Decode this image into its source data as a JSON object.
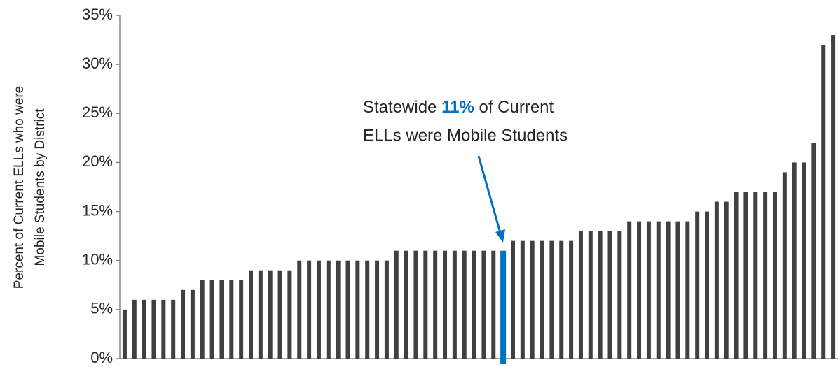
{
  "chart_data": {
    "type": "bar",
    "ylabel": [
      "Percent of Current ELLs who were",
      "Mobile Students by District"
    ],
    "annotation": [
      [
        "Statewide ",
        "11%",
        " of Current"
      ],
      [
        "ELLs were Mobile Students"
      ]
    ],
    "categories": [
      null,
      null,
      null,
      null,
      null,
      null,
      null,
      null,
      null,
      null,
      null,
      null,
      null,
      null,
      null,
      null,
      null,
      null,
      null,
      null,
      null,
      null,
      null,
      null,
      null,
      null,
      null,
      null,
      null,
      null,
      null,
      null,
      null,
      null,
      null,
      null,
      null,
      null,
      null,
      null,
      null,
      null,
      null,
      null,
      null,
      null,
      null,
      null,
      null,
      null,
      null,
      null,
      null,
      null,
      null,
      null,
      null,
      null,
      null,
      null,
      null,
      null,
      null,
      null,
      null,
      null,
      null,
      null,
      null,
      null,
      null,
      null,
      null,
      null
    ],
    "values": [
      5,
      6,
      6,
      6,
      6,
      6,
      7,
      7,
      8,
      8,
      8,
      8,
      8,
      9,
      9,
      9,
      9,
      9,
      10,
      10,
      10,
      10,
      10,
      10,
      10,
      10,
      10,
      10,
      11,
      11,
      11,
      11,
      11,
      11,
      11,
      11,
      11,
      11,
      11,
      11,
      12,
      12,
      12,
      12,
      12,
      12,
      12,
      13,
      13,
      13,
      13,
      13,
      14,
      14,
      14,
      14,
      14,
      14,
      14,
      15,
      15,
      16,
      16,
      17,
      17,
      17,
      17,
      17,
      19,
      20,
      20,
      22,
      32,
      33
    ],
    "colors": [
      "#404040",
      "#404040",
      "#404040",
      "#404040",
      "#404040",
      "#404040",
      "#404040",
      "#404040",
      "#404040",
      "#404040",
      "#404040",
      "#404040",
      "#404040",
      "#404040",
      "#404040",
      "#404040",
      "#404040",
      "#404040",
      "#404040",
      "#404040",
      "#404040",
      "#404040",
      "#404040",
      "#404040",
      "#404040",
      "#404040",
      "#404040",
      "#404040",
      "#404040",
      "#404040",
      "#404040",
      "#404040",
      "#404040",
      "#404040",
      "#404040",
      "#404040",
      "#404040",
      "#404040",
      "#404040",
      "#0070c0",
      "#404040",
      "#404040",
      "#404040",
      "#404040",
      "#404040",
      "#404040",
      "#404040",
      "#404040",
      "#404040",
      "#404040",
      "#404040",
      "#404040",
      "#404040",
      "#404040",
      "#404040",
      "#404040",
      "#404040",
      "#404040",
      "#404040",
      "#404040",
      "#404040",
      "#404040",
      "#404040",
      "#404040",
      "#404040",
      "#404040",
      "#404040",
      "#404040",
      "#404040",
      "#404040",
      "#404040",
      "#404040",
      "#404040",
      "#404040"
    ],
    "annotation_color": "#0070c0",
    "ylim": [
      0,
      35
    ],
    "yticks": [
      {
        "value": 0,
        "label": "0%"
      },
      {
        "value": 5,
        "label": "5%"
      },
      {
        "value": 10,
        "label": "10%"
      },
      {
        "value": 15,
        "label": "15%"
      },
      {
        "value": 20,
        "label": "20%"
      },
      {
        "value": 25,
        "label": "25%"
      },
      {
        "value": 30,
        "label": "30%"
      },
      {
        "value": 35,
        "label": "35%"
      }
    ],
    "grid": false
  }
}
